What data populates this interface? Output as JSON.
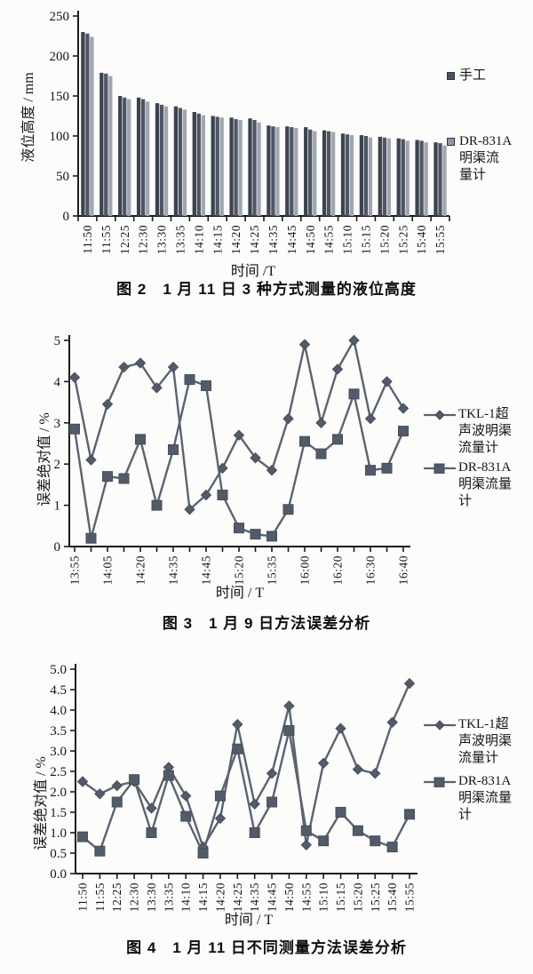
{
  "colors": {
    "background": "#fcfcfa",
    "axis": "#1c1c1c",
    "bar_dark1": "#3b4350",
    "bar_dark2": "#4d5663",
    "bar_light": "#9fa6af",
    "line": "#5a6370",
    "marker_fill": "#525b6a",
    "marker_edge": "#454e5c"
  },
  "chart_data": [
    {
      "id": "fig2",
      "type": "bar",
      "caption": "图 2　1 月 11 日 3 种方式测量的液位高度",
      "xlabel": "时间 /T",
      "ylabel": "液位高度 / mm",
      "ylim": [
        0,
        250
      ],
      "ytick_labels": [
        "0",
        "50",
        "100",
        "150",
        "200",
        "250"
      ],
      "grid": false,
      "legend_position": "right",
      "categories": [
        "11:50",
        "11:55",
        "12:25",
        "12:30",
        "13:30",
        "13:35",
        "14:10",
        "14:15",
        "14:20",
        "14:25",
        "14:35",
        "14:45",
        "14:50",
        "14:55",
        "15:10",
        "15:15",
        "15:20",
        "15:25",
        "15:40",
        "15:55"
      ],
      "series": [
        {
          "name": "手工",
          "color_key": "bar_dark1",
          "values": [
            230,
            179,
            150,
            148,
            141,
            137,
            130,
            125,
            123,
            122,
            113,
            112,
            111,
            107,
            103,
            101,
            99,
            97,
            95,
            92
          ]
        },
        {
          "name": "",
          "color_key": "bar_dark2",
          "values": [
            228,
            178,
            148,
            146,
            139,
            135,
            128,
            124,
            121,
            120,
            112,
            111,
            108,
            106,
            102,
            100,
            98,
            96,
            94,
            91
          ]
        },
        {
          "name": "DR-831A明渠流量计",
          "color_key": "bar_light",
          "values": [
            224,
            175,
            146,
            143,
            137,
            133,
            126,
            123,
            120,
            117,
            111,
            110,
            106,
            105,
            101,
            98,
            97,
            94,
            92,
            88
          ]
        }
      ],
      "legend": [
        {
          "marker": "square-dark",
          "label": "手工",
          "lines": [
            "手工"
          ]
        },
        {
          "marker": "square-light",
          "label": "DR-831A明渠流量计",
          "lines": [
            "DR-831A",
            "明渠流",
            "量计"
          ]
        }
      ]
    },
    {
      "id": "fig3",
      "type": "line",
      "caption": "图 3　1 月 9 日方法误差分析",
      "xlabel": "时间 / T",
      "ylabel": "误差绝对值 / %",
      "ylim": [
        0,
        5
      ],
      "ytick_labels": [
        "0",
        "1",
        "2",
        "3",
        "4",
        "5"
      ],
      "grid": false,
      "legend_position": "right",
      "x_tick_labels": [
        "13:55",
        "",
        "14:05",
        "",
        "14:20",
        "",
        "14:35",
        "",
        "14:45",
        "",
        "15:20",
        "",
        "15:35",
        "",
        "16:00",
        "",
        "16:20",
        "",
        "16:30",
        "",
        "16:40"
      ],
      "series": [
        {
          "name": "TKL-1超声波明渠流量计",
          "marker": "diamond",
          "values": [
            4.1,
            2.1,
            3.45,
            4.35,
            4.45,
            3.85,
            4.35,
            0.9,
            1.25,
            1.9,
            2.7,
            2.15,
            1.85,
            3.1,
            4.9,
            3.0,
            4.3,
            5.0,
            3.1,
            4.0,
            3.35
          ]
        },
        {
          "name": "DR-831A明渠流量计",
          "marker": "square",
          "values": [
            2.85,
            0.2,
            1.7,
            1.65,
            2.6,
            1.0,
            2.35,
            4.05,
            3.9,
            1.25,
            0.45,
            0.3,
            0.25,
            0.9,
            2.55,
            2.25,
            2.6,
            3.7,
            1.85,
            1.9,
            2.8
          ]
        }
      ],
      "legend": [
        {
          "marker": "line-diamond",
          "label": "TKL-1超声波明渠流量计",
          "lines": [
            "TKL-1超",
            "声波明渠",
            "流量计"
          ]
        },
        {
          "marker": "line-square",
          "label": "DR-831A明渠流量计",
          "lines": [
            "DR-831A",
            "明渠流量",
            "计"
          ]
        }
      ]
    },
    {
      "id": "fig4",
      "type": "line",
      "caption": "图 4　1 月 11 日不同测量方法误差分析",
      "xlabel": "时间 / T",
      "ylabel": "误差绝对值 / %",
      "ylim": [
        0,
        5
      ],
      "ytick_labels": [
        "0.0",
        "0.5",
        "1.0",
        "1.5",
        "2.0",
        "2.5",
        "3.0",
        "3.5",
        "4.0",
        "4.5",
        "5.0"
      ],
      "grid": false,
      "legend_position": "right",
      "x_tick_labels": [
        "11:50",
        "11:55",
        "12:25",
        "12:30",
        "13:30",
        "13:35",
        "14:10",
        "14:15",
        "14:20",
        "14:25",
        "14:35",
        "14:45",
        "14:50",
        "14:55",
        "15:10",
        "15:15",
        "15:20",
        "15:25",
        "15:40",
        "15:55"
      ],
      "series": [
        {
          "name": "TKL-1超声波明渠流量计",
          "marker": "diamond",
          "values": [
            2.25,
            1.95,
            2.15,
            2.25,
            1.6,
            2.6,
            1.9,
            0.65,
            1.35,
            3.65,
            1.7,
            2.45,
            4.1,
            0.7,
            2.7,
            3.55,
            2.55,
            2.45,
            3.7,
            4.65
          ]
        },
        {
          "name": "DR-831A明渠流量计",
          "marker": "square",
          "values": [
            0.9,
            0.55,
            1.75,
            2.3,
            1.0,
            2.4,
            1.4,
            0.5,
            1.9,
            3.05,
            1.0,
            1.75,
            3.5,
            1.05,
            0.8,
            1.5,
            1.05,
            0.8,
            0.65,
            1.45
          ]
        }
      ],
      "legend": [
        {
          "marker": "line-diamond",
          "label": "TKL-1超声波明渠流量计",
          "lines": [
            "TKL-1超",
            "声波明渠",
            "流量计"
          ]
        },
        {
          "marker": "line-square",
          "label": "DR-831A明渠流量计",
          "lines": [
            "DR-831A",
            "明渠流量",
            "计"
          ]
        }
      ]
    }
  ]
}
